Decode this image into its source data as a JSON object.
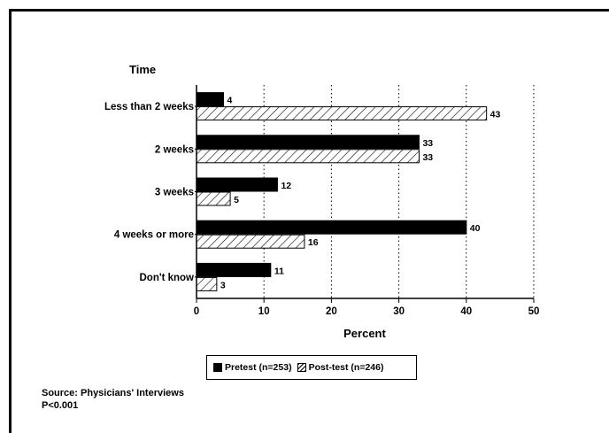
{
  "chart_data": {
    "type": "bar",
    "orientation": "horizontal",
    "ylabel": "Time",
    "xlabel": "Percent",
    "categories": [
      "Less than 2 weeks",
      "2 weeks",
      "3 weeks",
      "4 weeks or more",
      "Don't know"
    ],
    "series": [
      {
        "name": "Pretest (n=253)",
        "values": [
          4,
          33,
          12,
          40,
          11
        ],
        "fill": "solid",
        "color": "#000000"
      },
      {
        "name": "Post-test (n=246)",
        "values": [
          43,
          33,
          5,
          16,
          3
        ],
        "fill": "hatched",
        "color": "#000000"
      }
    ],
    "xlim": [
      0,
      50
    ],
    "xticks": [
      0,
      10,
      20,
      30,
      40,
      50
    ],
    "grid": "dotted vertical",
    "legend_position": "bottom"
  },
  "notes": {
    "source": "Source: Physicians' Interviews",
    "pvalue": "P<0.001"
  }
}
